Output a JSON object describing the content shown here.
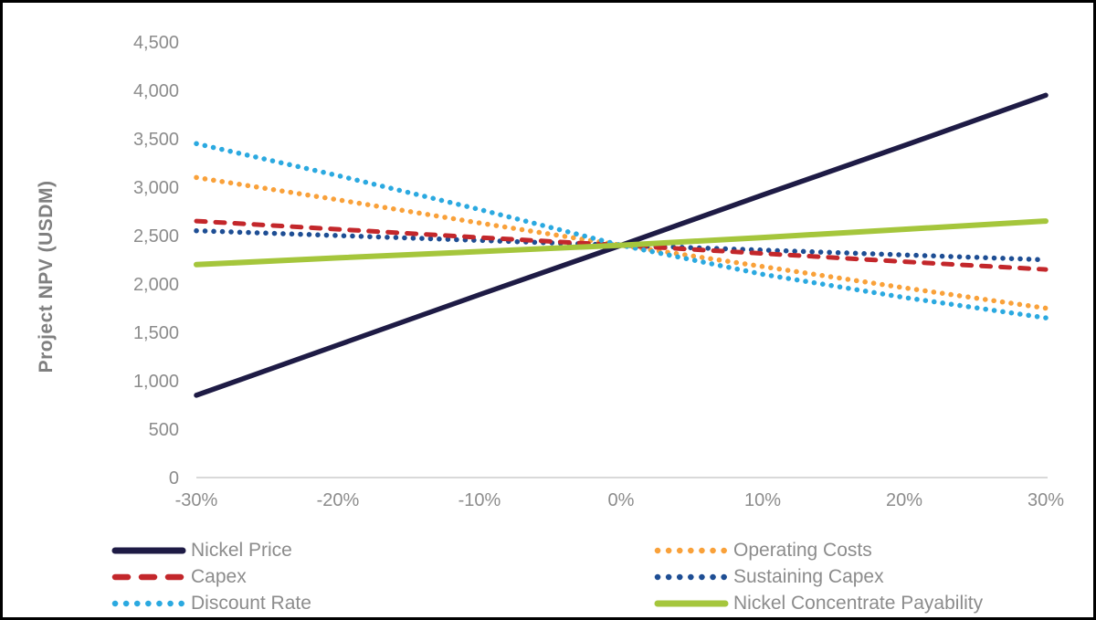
{
  "axis": {
    "text_color": "#8C8C8C",
    "axis_line_color": "#D9D9D9",
    "background_color": "#FFFFFF",
    "frame_border_color": "#000000"
  },
  "chart_data": {
    "type": "line",
    "title": "",
    "xlabel": "",
    "ylabel": "Project NPV (USDM)",
    "grid": false,
    "legend_position": "bottom-two-columns",
    "x_values": [
      -30,
      -20,
      -10,
      0,
      10,
      20,
      30
    ],
    "x_tick_labels": [
      "-30%",
      "-20%",
      "-10%",
      "0%",
      "10%",
      "20%",
      "30%"
    ],
    "y_ticks": [
      0,
      500,
      1000,
      1500,
      2000,
      2500,
      3000,
      3500,
      4000,
      4500
    ],
    "y_tick_labels": [
      "0",
      "500",
      "1,000",
      "1,500",
      "2,000",
      "2,500",
      "3,000",
      "3,500",
      "4,000",
      "4,500"
    ],
    "ylim": [
      0,
      4500
    ],
    "base_npv": 2400,
    "series": [
      {
        "name": "Nickel Price",
        "slug": "nickel-price",
        "color": "#1E1B45",
        "style": "solid",
        "width": 5.5,
        "values": [
          850,
          1370,
          1890,
          2400,
          2920,
          3430,
          3950
        ]
      },
      {
        "name": "Operating Costs",
        "slug": "operating-costs",
        "color": "#F9A13A",
        "style": "dotted",
        "width": 5.5,
        "values": [
          3100,
          2870,
          2630,
          2400,
          2180,
          1960,
          1750
        ]
      },
      {
        "name": "Sustaining Capex",
        "slug": "sustaining-capex",
        "color": "#1E4E94",
        "style": "dotted",
        "width": 5.5,
        "values": [
          2550,
          2500,
          2450,
          2400,
          2350,
          2300,
          2250
        ]
      },
      {
        "name": "Capex",
        "slug": "capex",
        "color": "#C3272B",
        "style": "dashed",
        "width": 5,
        "values": [
          2650,
          2565,
          2480,
          2400,
          2315,
          2230,
          2150
        ]
      },
      {
        "name": "Discount Rate",
        "slug": "discount-rate",
        "color": "#2BA9E0",
        "style": "dotted",
        "width": 5.5,
        "values": [
          3450,
          3120,
          2770,
          2400,
          2100,
          1860,
          1650
        ]
      },
      {
        "name": "Nickel Concentrate Payability",
        "slug": "nickel-concentrate-payability",
        "color": "#A5C63C",
        "style": "solid",
        "width": 6,
        "values": [
          2200,
          2270,
          2335,
          2400,
          2480,
          2565,
          2650
        ]
      }
    ],
    "legend_order": [
      "Nickel Price",
      "Operating Costs",
      "Capex",
      "Sustaining Capex",
      "Discount Rate",
      "Nickel Concentrate Payability"
    ]
  }
}
